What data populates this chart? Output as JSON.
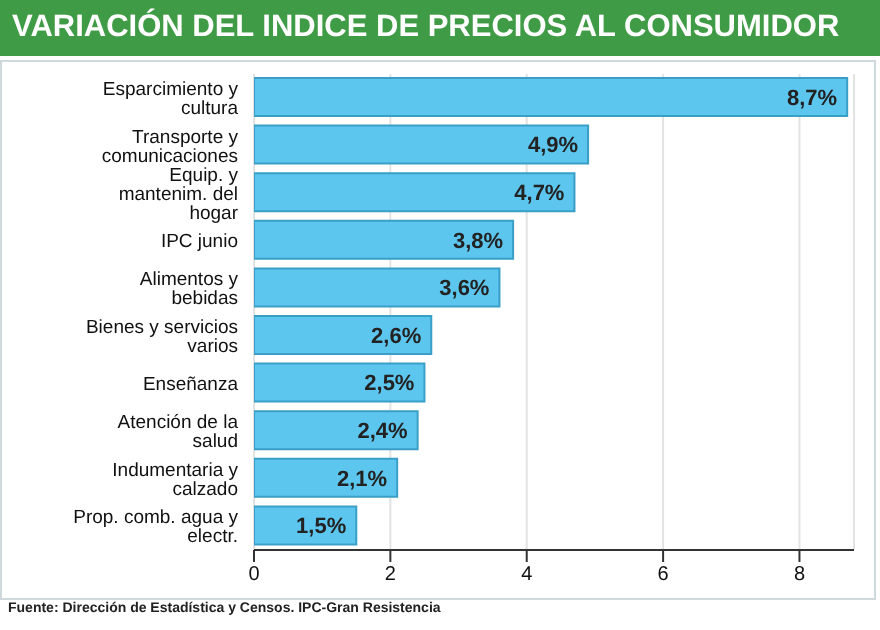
{
  "chart_data": {
    "type": "bar",
    "orientation": "horizontal",
    "title": "VARIACIÓN DEL INDICE DE PRECIOS AL CONSUMIDOR",
    "categories": [
      "Esparcimiento y cultura",
      "Transporte y comunicaciones",
      "Equip. y mantenim. del hogar",
      "IPC junio",
      "Alimentos y bebidas",
      "Bienes y servicios varios",
      "Enseñanza",
      "Atención de la salud",
      "Indumentaria y calzado",
      "Prop. comb. agua y electr."
    ],
    "values": [
      8.7,
      4.9,
      4.7,
      3.8,
      3.6,
      2.6,
      2.5,
      2.4,
      2.1,
      1.5
    ],
    "value_labels": [
      "8,7%",
      "4,9%",
      "4,7%",
      "3,8%",
      "3,6%",
      "2,6%",
      "2,5%",
      "2,4%",
      "2,1%",
      "1,5%"
    ],
    "color": "#5cc6ee",
    "xlim": [
      0,
      8.8
    ],
    "xticks": [
      0,
      2,
      4,
      6,
      8
    ],
    "grid": "x",
    "annotations": [
      "Fuente: Dirección de Estadística y Censos. IPC-Gran Resistencia"
    ]
  }
}
